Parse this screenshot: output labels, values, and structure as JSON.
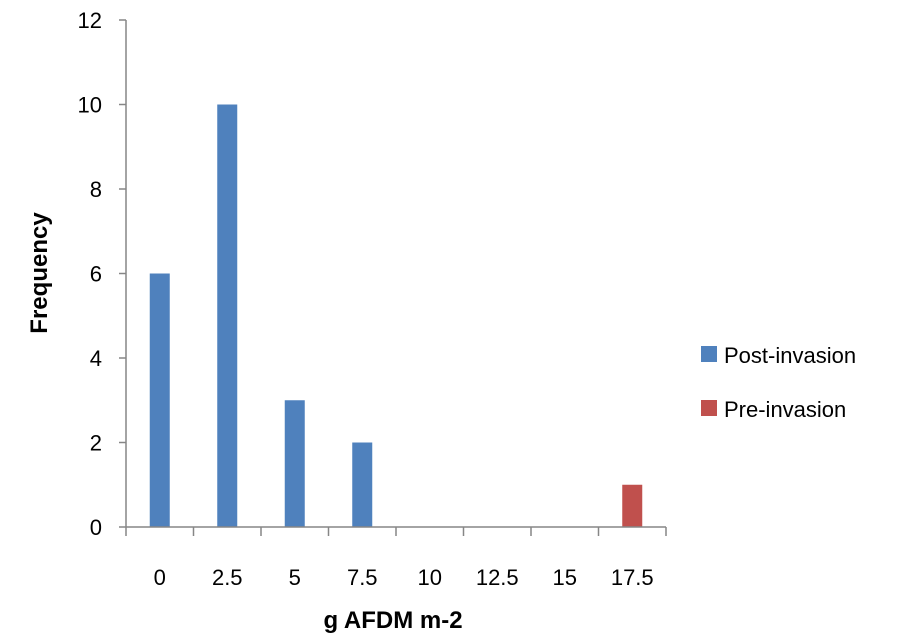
{
  "chart_data": {
    "type": "bar",
    "categories": [
      "0",
      "2.5",
      "5",
      "7.5",
      "10",
      "12.5",
      "15",
      "17.5"
    ],
    "series": [
      {
        "name": "Post-invasion",
        "color": "#4F81BD",
        "values": [
          6,
          10,
          3,
          2,
          0,
          0,
          0,
          0
        ]
      },
      {
        "name": "Pre-invasion",
        "color": "#C0504D",
        "values": [
          0,
          0,
          0,
          0,
          0,
          0,
          0,
          1
        ]
      }
    ],
    "xlabel": "g AFDM m-2",
    "ylabel": "Frequency",
    "ylim": [
      0,
      12
    ],
    "yticks": [
      "0",
      "2",
      "4",
      "6",
      "8",
      "10",
      "12"
    ],
    "grid": false,
    "legend_position": "right"
  }
}
